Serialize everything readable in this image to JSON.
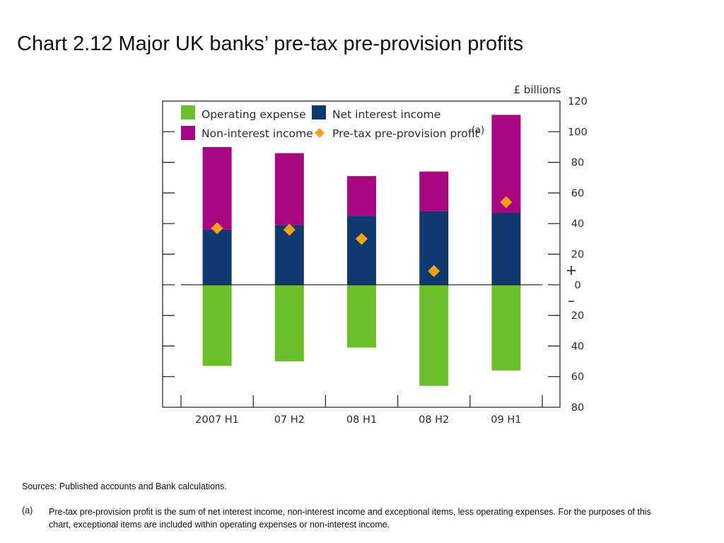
{
  "title": "Chart 2.12  Major UK banks’ pre-tax pre-provision profits",
  "sources": "Sources:  Published accounts and Bank calculations.",
  "footnote": {
    "marker": "(a)",
    "text": "Pre-tax pre-provision profit is the sum of net interest income, non-interest income and exceptional items, less operating expenses.  For the purposes of this chart, exceptional items are included within operating expenses or non-interest income."
  },
  "chart_data": {
    "type": "bar",
    "stacked": true,
    "unit_label": "£ billions",
    "categories": [
      "2007 H1",
      "07 H2",
      "08 H1",
      "08 H2",
      "09 H1"
    ],
    "series": [
      {
        "name": "Operating expense",
        "key": "opex",
        "values": [
          -53,
          -50,
          -41,
          -66,
          -56
        ],
        "color": "#6abf2a"
      },
      {
        "name": "Net interest income",
        "key": "nii",
        "values": [
          36,
          39,
          45,
          48,
          47
        ],
        "color": "#0e3a70"
      },
      {
        "name": "Non-interest income",
        "key": "nonii",
        "values": [
          54,
          47,
          26,
          26,
          64
        ],
        "color": "#a8067f"
      }
    ],
    "markers": {
      "name": "Pre-tax pre-provision profit",
      "superscript": "(a)",
      "values": [
        37,
        36,
        30,
        9,
        54
      ],
      "color": "#f7a11a"
    },
    "ylim": [
      -80,
      120
    ],
    "yticks": [
      {
        "value": 120,
        "label": "120"
      },
      {
        "value": 100,
        "label": "100"
      },
      {
        "value": 80,
        "label": "80"
      },
      {
        "value": 60,
        "label": "60"
      },
      {
        "value": 40,
        "label": "40"
      },
      {
        "value": 20,
        "label": "20"
      },
      {
        "value": 0,
        "label": "0"
      },
      {
        "value": -20,
        "label": "20"
      },
      {
        "value": -40,
        "label": "40"
      },
      {
        "value": -60,
        "label": "60"
      },
      {
        "value": -80,
        "label": "80"
      }
    ],
    "plus_sign": "+",
    "minus_sign": "–",
    "legend_position": "top-left"
  }
}
